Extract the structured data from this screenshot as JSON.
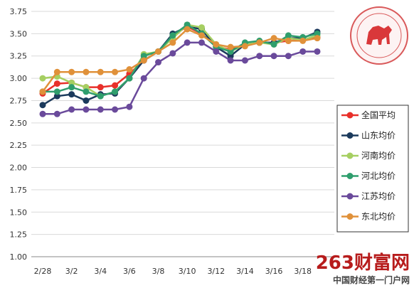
{
  "chart_data": {
    "type": "line",
    "x": [
      "2/28",
      "3/1",
      "3/2",
      "3/3",
      "3/4",
      "3/5",
      "3/6",
      "3/7",
      "3/8",
      "3/9",
      "3/10",
      "3/11",
      "3/12",
      "3/13",
      "3/14",
      "3/15",
      "3/16",
      "3/17",
      "3/18",
      "3/19"
    ],
    "x_tick_labels": [
      "2/28",
      "3/2",
      "3/4",
      "3/6",
      "3/8",
      "3/10",
      "3/12",
      "3/14",
      "3/16",
      "3/18"
    ],
    "y_tick_labels": [
      "1.00",
      "1.25",
      "1.50",
      "1.75",
      "2.00",
      "2.25",
      "2.50",
      "2.75",
      "3.00",
      "3.25",
      "3.50",
      "3.75"
    ],
    "ylim": [
      1.0,
      3.75
    ],
    "grid": "horizontal",
    "legend_position": "right",
    "series": [
      {
        "name": "全国平均",
        "color": "#e8302a",
        "values": [
          2.83,
          2.94,
          2.95,
          2.9,
          2.9,
          2.92,
          3.05,
          3.2,
          3.3,
          3.48,
          3.58,
          3.5,
          3.36,
          3.32,
          3.38,
          3.4,
          3.4,
          3.42,
          3.43,
          3.46
        ]
      },
      {
        "name": "山东均价",
        "color": "#1b3a5c",
        "values": [
          2.7,
          2.8,
          2.82,
          2.75,
          2.82,
          2.83,
          3.0,
          3.2,
          3.3,
          3.5,
          3.58,
          3.55,
          3.35,
          3.25,
          3.38,
          3.4,
          3.4,
          3.45,
          3.45,
          3.52
        ]
      },
      {
        "name": "河南均价",
        "color": "#a6cf62",
        "values": [
          3.0,
          3.02,
          2.95,
          2.9,
          2.8,
          2.85,
          3.0,
          3.27,
          3.3,
          3.45,
          3.6,
          3.57,
          3.38,
          3.3,
          3.38,
          3.4,
          3.38,
          3.45,
          3.43,
          3.48
        ]
      },
      {
        "name": "河北均价",
        "color": "#2f9e6d",
        "values": [
          2.85,
          2.85,
          2.9,
          2.85,
          2.8,
          2.85,
          3.0,
          3.25,
          3.3,
          3.48,
          3.6,
          3.5,
          3.35,
          3.3,
          3.4,
          3.42,
          3.38,
          3.48,
          3.46,
          3.5
        ]
      },
      {
        "name": "江苏均价",
        "color": "#6a4a9b",
        "values": [
          2.6,
          2.6,
          2.65,
          2.65,
          2.65,
          2.65,
          2.68,
          3.0,
          3.18,
          3.28,
          3.4,
          3.4,
          3.3,
          3.2,
          3.2,
          3.25,
          3.25,
          3.25,
          3.3,
          3.3
        ]
      },
      {
        "name": "东北均价",
        "color": "#e0913a",
        "values": [
          2.85,
          3.07,
          3.07,
          3.07,
          3.07,
          3.07,
          3.1,
          3.2,
          3.3,
          3.4,
          3.55,
          3.48,
          3.38,
          3.35,
          3.36,
          3.4,
          3.45,
          3.42,
          3.42,
          3.45
        ]
      }
    ]
  },
  "watermark": {
    "brand_text": "263财富网",
    "sub_text": "中国财经第一门户网"
  }
}
